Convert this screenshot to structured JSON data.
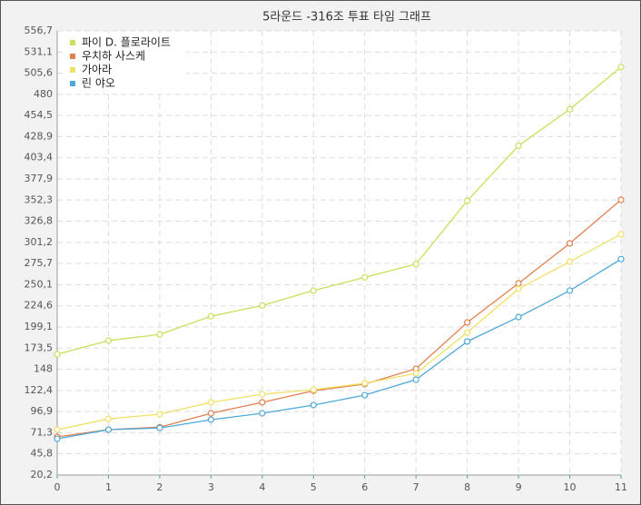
{
  "chart_data": {
    "type": "line",
    "title": "5라운드 -316조 투표 타임 그래프",
    "x": [
      0,
      1,
      2,
      3,
      4,
      5,
      6,
      7,
      8,
      9,
      10,
      11
    ],
    "xlim": [
      0,
      11
    ],
    "xticks": [
      0,
      1,
      2,
      3,
      4,
      5,
      6,
      7,
      8,
      9,
      10,
      11
    ],
    "ylim": [
      20.2,
      556.7
    ],
    "yticks": [
      {
        "value": 20.2,
        "label": "20,2"
      },
      {
        "value": 45.8,
        "label": "45,8"
      },
      {
        "value": 71.3,
        "label": "71,3"
      },
      {
        "value": 96.9,
        "label": "96,9"
      },
      {
        "value": 122.4,
        "label": "122,4"
      },
      148,
      {
        "value": 173.5,
        "label": "173,5"
      },
      {
        "value": 199.1,
        "label": "199,1"
      },
      {
        "value": 224.6,
        "label": "224,6"
      },
      {
        "value": 250.1,
        "label": "250,1"
      },
      {
        "value": 275.7,
        "label": "275,7"
      },
      {
        "value": 301.2,
        "label": "301,2"
      },
      {
        "value": 326.8,
        "label": "326,8"
      },
      {
        "value": 352.3,
        "label": "352,3"
      },
      {
        "value": 377.9,
        "label": "377,9"
      },
      {
        "value": 403.4,
        "label": "403,4"
      },
      {
        "value": 428.9,
        "label": "428,9"
      },
      {
        "value": 454.5,
        "label": "454,5"
      },
      480,
      {
        "value": 505.6,
        "label": "505,6"
      },
      {
        "value": 531.1,
        "label": "531,1"
      },
      {
        "value": 556.7,
        "label": "556,7"
      }
    ],
    "grid": true,
    "legend": "top-left",
    "series": [
      {
        "name": "파이 D. 플로라이트",
        "color": "#c9e05c",
        "values": [
          166,
          182.6,
          190,
          212,
          225,
          243,
          259,
          275,
          351.5,
          418,
          462,
          513
        ]
      },
      {
        "name": "우치하 사스케",
        "color": "#e0804f",
        "values": [
          66.3,
          75,
          78,
          94.8,
          108,
          122,
          130,
          148.6,
          204.5,
          251.7,
          300,
          352.6
        ]
      },
      {
        "name": "가아라",
        "color": "#f0e066",
        "values": [
          75,
          88,
          93.7,
          108,
          117.8,
          123.3,
          131,
          143,
          192.4,
          245,
          278,
          311
        ]
      },
      {
        "name": "린 야오",
        "color": "#4ea9d9",
        "values": [
          64,
          75,
          77,
          87,
          94.8,
          104.7,
          116.7,
          135.4,
          181.5,
          211,
          243,
          281
        ]
      }
    ]
  }
}
